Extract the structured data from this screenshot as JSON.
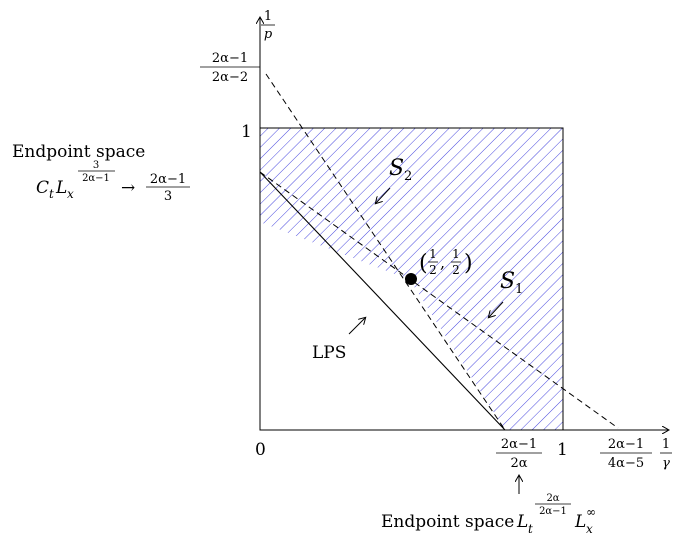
{
  "axes": {
    "x_label_num": "1",
    "x_label_den": "γ",
    "y_label_num": "1",
    "y_label_den": "p"
  },
  "ticks": {
    "origin": "0",
    "x_one": "1",
    "y_one": "1",
    "x_frac1_num": "2α−1",
    "x_frac1_den": "2α",
    "x_frac2_num": "2α−1",
    "x_frac2_den": "4α−5",
    "y_frac_num": "2α−1",
    "y_frac_den": "2α−2"
  },
  "labels": {
    "s2": "S",
    "s2_sub": "2",
    "s1": "S",
    "s1_sub": "1",
    "lps": "LPS",
    "point_open": "(",
    "point_half_num": "1",
    "point_half_den": "2",
    "point_comma": ",",
    "point_close": ")",
    "endpoint_left_title": "Endpoint space",
    "endpoint_left_C": "C",
    "endpoint_left_t": "t",
    "endpoint_left_L": "L",
    "endpoint_left_x": "x",
    "endpoint_left_exp_num": "3",
    "endpoint_left_exp_den": "2α−1",
    "endpoint_left_arrow": "→",
    "endpoint_left_val_num": "2α−1",
    "endpoint_left_val_den": "3",
    "endpoint_bottom_title": "Endpoint space",
    "endpoint_bottom_L1": "L",
    "endpoint_bottom_t": "t",
    "endpoint_bottom_exp_num": "2α",
    "endpoint_bottom_exp_den": "2α−1",
    "endpoint_bottom_L2": "L",
    "endpoint_bottom_x": "x",
    "endpoint_bottom_inf": "∞",
    "up_arrow": "↑"
  },
  "colors": {
    "hatch": "#4a4adf",
    "line": "#000000"
  }
}
